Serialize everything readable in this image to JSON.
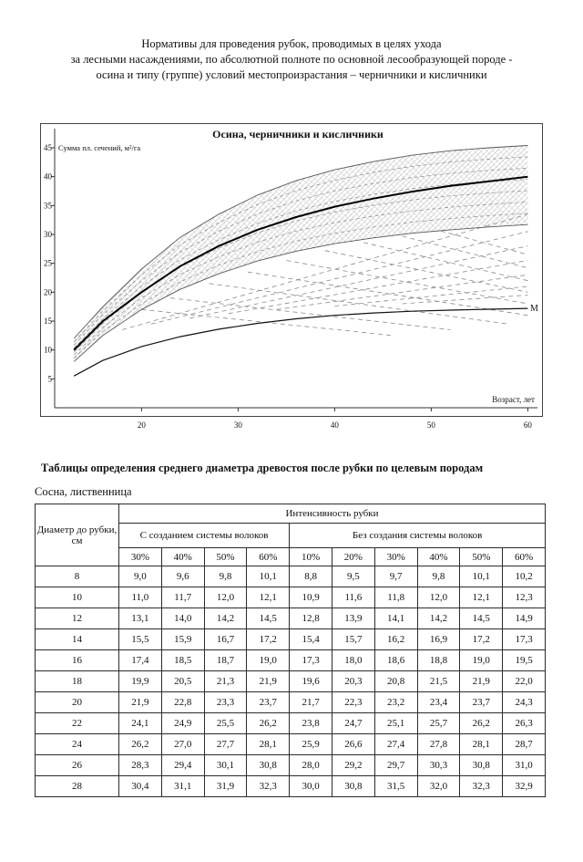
{
  "doc": {
    "title_lines": [
      "Нормативы для проведения рубок, проводимых в целях ухода",
      "за лесными насаждениями, по абсолютной полноте по основной лесообразующей породе -",
      "осина и типу (группе) условий местопроизрастания – черничники и кисличники"
    ]
  },
  "section": {
    "tables_heading": "Таблицы определения среднего диаметра древостоя после рубки по целевым породам",
    "species_label": "Сосна, лиственница"
  },
  "table": {
    "diameter_header": "Диаметр до рубки, см",
    "intensity_header": "Интенсивность рубки",
    "with_skid_header": "С созданием системы волоков",
    "without_skid_header": "Без создания системы волоков",
    "with_skid_percents": [
      "30%",
      "40%",
      "50%",
      "60%"
    ],
    "without_skid_percents": [
      "10%",
      "20%",
      "30%",
      "40%",
      "50%",
      "60%"
    ],
    "rows": [
      [
        "8",
        "9,0",
        "9,6",
        "9,8",
        "10,1",
        "8,8",
        "9,5",
        "9,7",
        "9,8",
        "10,1",
        "10,2"
      ],
      [
        "10",
        "11,0",
        "11,7",
        "12,0",
        "12,1",
        "10,9",
        "11,6",
        "11,8",
        "12,0",
        "12,1",
        "12,3"
      ],
      [
        "12",
        "13,1",
        "14,0",
        "14,2",
        "14,5",
        "12,8",
        "13,9",
        "14,1",
        "14,2",
        "14,5",
        "14,9"
      ],
      [
        "14",
        "15,5",
        "15,9",
        "16,7",
        "17,2",
        "15,4",
        "15,7",
        "16,2",
        "16,9",
        "17,2",
        "17,3"
      ],
      [
        "16",
        "17,4",
        "18,5",
        "18,7",
        "19,0",
        "17,3",
        "18,0",
        "18,6",
        "18,8",
        "19,0",
        "19,5"
      ],
      [
        "18",
        "19,9",
        "20,5",
        "21,3",
        "21,9",
        "19,6",
        "20,3",
        "20,8",
        "21,5",
        "21,9",
        "22,0"
      ],
      [
        "20",
        "21,9",
        "22,8",
        "23,3",
        "23,7",
        "21,7",
        "22,3",
        "23,2",
        "23,4",
        "23,7",
        "24,3"
      ],
      [
        "22",
        "24,1",
        "24,9",
        "25,5",
        "26,2",
        "23,8",
        "24,7",
        "25,1",
        "25,7",
        "26,2",
        "26,3"
      ],
      [
        "24",
        "26,2",
        "27,0",
        "27,7",
        "28,1",
        "25,9",
        "26,6",
        "27,4",
        "27,8",
        "28,1",
        "28,7"
      ],
      [
        "26",
        "28,3",
        "29,4",
        "30,1",
        "30,8",
        "28,0",
        "29,2",
        "29,7",
        "30,3",
        "30,8",
        "31,0"
      ],
      [
        "28",
        "30,4",
        "31,1",
        "31,9",
        "32,3",
        "30,0",
        "30,8",
        "31,5",
        "32,0",
        "32,3",
        "32,9"
      ]
    ]
  },
  "chart_data": {
    "type": "line",
    "title": "Осина, черничники и кисличники",
    "ylabel": "Сумма пл. сечений, м²/га",
    "xlabel": "Возраст, лет",
    "right_label": "М",
    "xlim": [
      11,
      61
    ],
    "ylim": [
      0,
      48
    ],
    "xticks": [
      20,
      30,
      40,
      50,
      60
    ],
    "yticks": [
      5,
      10,
      15,
      20,
      25,
      30,
      35,
      40,
      45
    ],
    "grid": false,
    "legend": "none",
    "band_hatched": true,
    "ages": [
      13,
      16,
      20,
      24,
      28,
      32,
      36,
      40,
      44,
      48,
      52,
      56,
      60
    ],
    "series": [
      {
        "name": "band-upper-envelope",
        "values": [
          12,
          17.5,
          24,
          29.5,
          33.5,
          36.8,
          39.3,
          41.2,
          42.6,
          43.7,
          44.5,
          45.0,
          45.4
        ]
      },
      {
        "name": "band-lower-envelope",
        "values": [
          8,
          12.5,
          17,
          20.5,
          23.2,
          25.4,
          27.1,
          28.4,
          29.4,
          30.2,
          30.8,
          31.3,
          31.7
        ]
      },
      {
        "name": "main-normative-curve",
        "values": [
          10,
          15,
          20,
          24.5,
          28,
          30.8,
          33,
          34.8,
          36.2,
          37.4,
          38.4,
          39.2,
          40
        ]
      },
      {
        "name": "minimum-curve-M",
        "values": [
          5.5,
          8.2,
          10.6,
          12.3,
          13.6,
          14.6,
          15.4,
          16.0,
          16.4,
          16.7,
          16.9,
          17.05,
          17.2
        ]
      }
    ],
    "fan_rising": [
      [
        [
          18,
          13.5
        ],
        [
          60,
          33.5
        ]
      ],
      [
        [
          21,
          14.5
        ],
        [
          60,
          30.5
        ]
      ],
      [
        [
          25,
          15.5
        ],
        [
          60,
          28.0
        ]
      ],
      [
        [
          29,
          16.3
        ],
        [
          60,
          25.5
        ]
      ],
      [
        [
          34,
          17.0
        ],
        [
          60,
          23.0
        ]
      ],
      [
        [
          40,
          17.6
        ],
        [
          60,
          21.0
        ]
      ],
      [
        [
          47,
          18.0
        ],
        [
          60,
          19.5
        ]
      ]
    ],
    "fan_falling": [
      [
        [
          20,
          17.0
        ],
        [
          46,
          12.5
        ]
      ],
      [
        [
          23,
          19.0
        ],
        [
          52,
          13.5
        ]
      ],
      [
        [
          27,
          21.5
        ],
        [
          58,
          14.5
        ]
      ],
      [
        [
          31,
          23.5
        ],
        [
          60,
          16.0
        ]
      ],
      [
        [
          35,
          25.5
        ],
        [
          60,
          18.0
        ]
      ],
      [
        [
          39,
          27.2
        ],
        [
          60,
          20.0
        ]
      ],
      [
        [
          43,
          28.6
        ],
        [
          60,
          22.0
        ]
      ],
      [
        [
          47,
          29.7
        ],
        [
          60,
          24.2
        ]
      ],
      [
        [
          51,
          30.6
        ],
        [
          60,
          26.5
        ]
      ]
    ],
    "band_inner_dashed_curves": 6
  }
}
